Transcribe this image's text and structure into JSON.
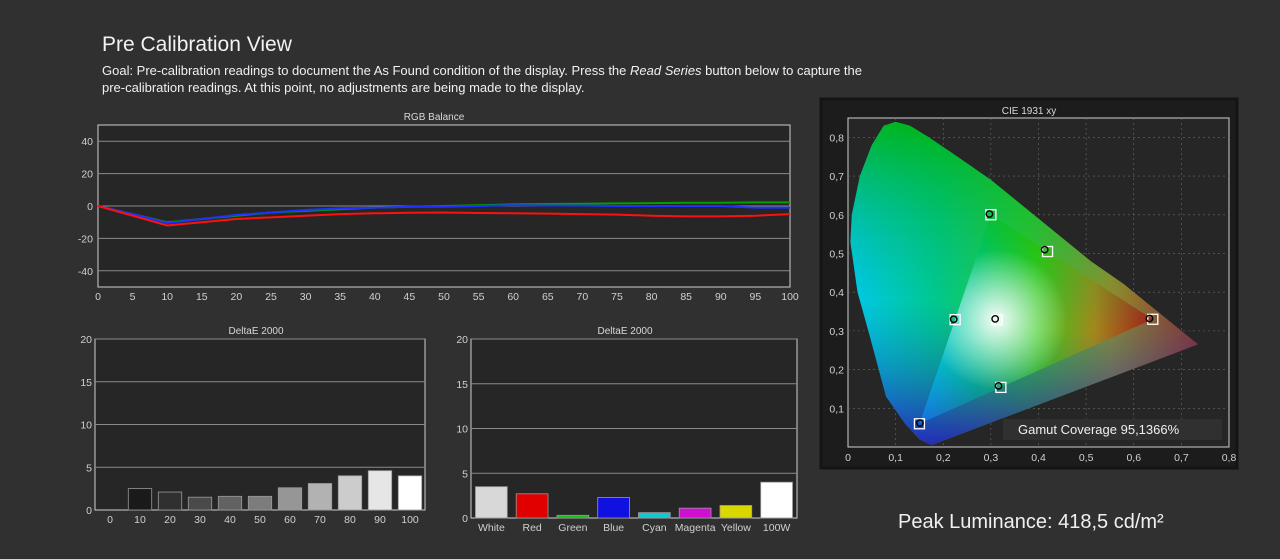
{
  "header": {
    "title": "Pre Calibration View",
    "goal_pre": "Goal: Pre-calibration readings to document the As Found condition of the display. Press the ",
    "goal_em": "Read Series",
    "goal_post": " button below to capture the pre-calibration readings. At this point, no adjustments are being made to the display."
  },
  "peak_luminance": "Peak Luminance: 418,5 cd/m²",
  "chart_data": [
    {
      "type": "line",
      "title": "RGB Balance",
      "xlabel": "",
      "ylabel": "",
      "x": [
        0,
        5,
        10,
        15,
        20,
        25,
        30,
        35,
        40,
        45,
        50,
        55,
        60,
        65,
        70,
        75,
        80,
        85,
        90,
        95,
        100
      ],
      "x_ticks": [
        "0",
        "5",
        "10",
        "15",
        "20",
        "25",
        "30",
        "35",
        "40",
        "45",
        "50",
        "55",
        "60",
        "65",
        "70",
        "75",
        "80",
        "85",
        "90",
        "95",
        "100"
      ],
      "ylim": [
        -50,
        50
      ],
      "y_ticks": [
        "40",
        "20",
        "0",
        "-20",
        "-40"
      ],
      "grid": true,
      "series": [
        {
          "color": "#00a000",
          "values": [
            0,
            -5,
            -10,
            -8,
            -6,
            -4,
            -3,
            -2,
            -1,
            -0.5,
            0,
            0.5,
            1,
            1.2,
            1.4,
            1.6,
            1.8,
            2,
            2,
            2.2,
            2.2
          ]
        },
        {
          "color": "#2030ff",
          "values": [
            0,
            -5,
            -10.5,
            -8,
            -5.5,
            -4,
            -2.5,
            -1.5,
            -1,
            -0.5,
            -0.5,
            0,
            0.5,
            0.3,
            0.3,
            0,
            0,
            0,
            0,
            -1,
            -1
          ]
        },
        {
          "color": "#ff1010",
          "values": [
            0,
            -6,
            -12,
            -10,
            -8,
            -7,
            -6,
            -5,
            -4.5,
            -4.2,
            -4,
            -4.3,
            -4.5,
            -4.7,
            -5,
            -5.3,
            -6,
            -6.4,
            -6.4,
            -6,
            -5
          ]
        }
      ]
    },
    {
      "type": "bar",
      "title": "DeltaE 2000",
      "categories": [
        "0",
        "10",
        "20",
        "30",
        "40",
        "50",
        "60",
        "70",
        "80",
        "90",
        "100"
      ],
      "values": [
        0,
        2.5,
        2.1,
        1.5,
        1.6,
        1.6,
        2.6,
        3.1,
        4.0,
        4.6,
        4.0
      ],
      "colors": [
        "#000000",
        "#1a1a1a",
        "#303030",
        "#4a4a4a",
        "#626262",
        "#7c7c7c",
        "#969696",
        "#b2b2b2",
        "#cccccc",
        "#e6e6e6",
        "#ffffff"
      ],
      "ylim": [
        0,
        20
      ],
      "y_ticks": [
        "20",
        "15",
        "10",
        "5",
        "0"
      ]
    },
    {
      "type": "bar",
      "title": "DeltaE 2000",
      "categories": [
        "White",
        "Red",
        "Green",
        "Blue",
        "Cyan",
        "Magenta",
        "Yellow",
        "100W"
      ],
      "values": [
        3.5,
        2.7,
        0.3,
        2.3,
        0.6,
        1.1,
        1.4,
        4.0
      ],
      "colors": [
        "#d8d8d8",
        "#e00000",
        "#10c010",
        "#1010e0",
        "#10c8d0",
        "#d010d0",
        "#d8d800",
        "#ffffff"
      ],
      "ylim": [
        0,
        20
      ],
      "y_ticks": [
        "20",
        "15",
        "10",
        "5",
        "0"
      ]
    },
    {
      "type": "scatter",
      "title": "CIE 1931 xy",
      "xlim": [
        0,
        0.8
      ],
      "ylim": [
        0,
        0.85
      ],
      "x_ticks": [
        "0",
        "0,1",
        "0,2",
        "0,3",
        "0,4",
        "0,5",
        "0,6",
        "0,7",
        "0,8"
      ],
      "y_ticks": [
        "0,8",
        "0,7",
        "0,6",
        "0,5",
        "0,4",
        "0,3",
        "0,2",
        "0,1"
      ],
      "targets": [
        {
          "name": "R",
          "x": 0.64,
          "y": 0.33
        },
        {
          "name": "G",
          "x": 0.3,
          "y": 0.6
        },
        {
          "name": "B",
          "x": 0.15,
          "y": 0.06
        },
        {
          "name": "C",
          "x": 0.225,
          "y": 0.329
        },
        {
          "name": "M",
          "x": 0.321,
          "y": 0.154
        },
        {
          "name": "Y",
          "x": 0.419,
          "y": 0.505
        },
        {
          "name": "W",
          "x": 0.3127,
          "y": 0.329
        }
      ],
      "measured": [
        {
          "name": "R",
          "x": 0.633,
          "y": 0.332
        },
        {
          "name": "G",
          "x": 0.297,
          "y": 0.602
        },
        {
          "name": "B",
          "x": 0.151,
          "y": 0.062
        },
        {
          "name": "C",
          "x": 0.222,
          "y": 0.33
        },
        {
          "name": "M",
          "x": 0.316,
          "y": 0.158
        },
        {
          "name": "Y",
          "x": 0.413,
          "y": 0.51
        },
        {
          "name": "W",
          "x": 0.309,
          "y": 0.331
        }
      ],
      "gamut_coverage": "Gamut Coverage 95,1366%"
    }
  ]
}
